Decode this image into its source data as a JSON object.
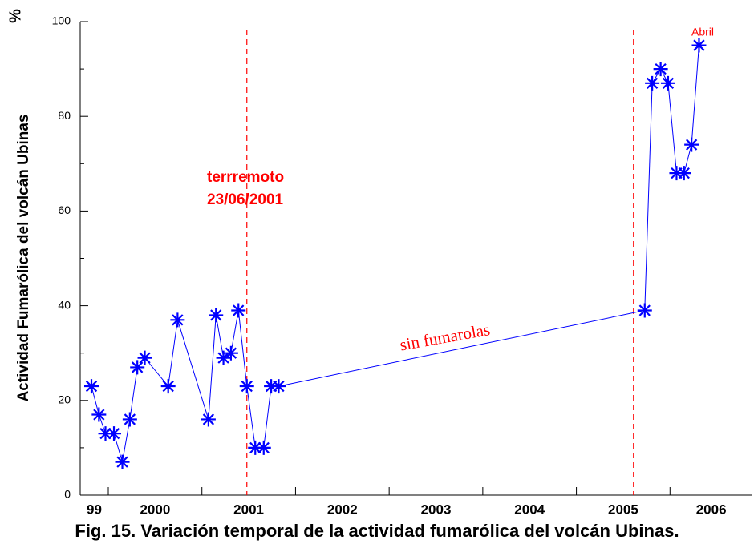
{
  "chart_data": {
    "type": "line",
    "title": "Fig. 15. Variación temporal de la actividad fumarólica del volcán Ubinas.",
    "y_label": "Actividad Fumarólica  del volcán Ubinas",
    "y_unit": "%",
    "x": [
      1999.82,
      1999.9,
      1999.97,
      2000.06,
      2000.15,
      2000.23,
      2000.31,
      2000.39,
      2000.64,
      2000.74,
      2001.07,
      2001.15,
      2001.23,
      2001.31,
      2001.39,
      2001.48,
      2001.57,
      2001.66,
      2001.74,
      2001.82,
      2005.73,
      2005.81,
      2005.9,
      2005.98,
      2006.07,
      2006.15,
      2006.23,
      2006.31
    ],
    "series": [
      {
        "color": "#0000ff",
        "values": [
          23,
          17,
          13,
          13,
          7,
          16,
          27,
          29,
          23,
          37,
          16,
          38,
          29,
          30,
          39,
          23,
          10,
          10,
          23,
          23,
          39,
          87,
          90,
          87,
          68,
          68,
          74,
          95
        ]
      }
    ],
    "xlim": [
      1999.7,
      2006.88
    ],
    "xticks": [
      2000,
      2001,
      2002,
      2003,
      2004,
      2005,
      2006
    ],
    "year_labels": [
      "99",
      "2000",
      "2001",
      "2002",
      "2003",
      "2004",
      "2005",
      "2006"
    ],
    "ylim": [
      0,
      100
    ],
    "yticks": [
      0,
      20,
      40,
      60,
      80,
      100
    ],
    "yminor_ticks": [
      10,
      30,
      50,
      70,
      90
    ],
    "event_lines": [
      2001.48,
      2005.61
    ],
    "event_color": "#ff0000",
    "annotations": [
      "terrremoto",
      "23/06/2001",
      "sin fumarolas",
      "Abril"
    ]
  }
}
